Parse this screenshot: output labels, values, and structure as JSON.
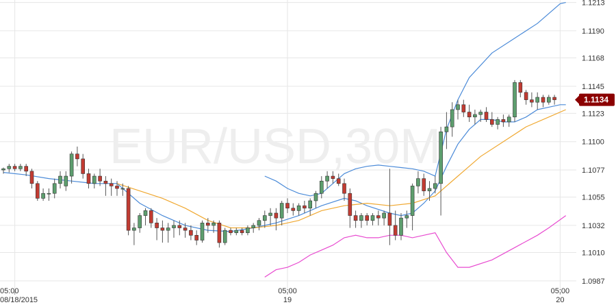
{
  "watermark": "EUR/USD,30M",
  "current_price_label": "1.1134",
  "colors": {
    "bull": "#5d9e6e",
    "bear": "#c23b32",
    "wick": "#555555",
    "ma_short": "#4a8ad8",
    "ma_long": "#f0a830",
    "band_lower": "#e84ad0",
    "tag_bg": "#8b0000",
    "grid": "#e6e6e6"
  },
  "chart_data": {
    "type": "candlestick",
    "symbol": "EUR/USD",
    "timeframe": "30M",
    "ylim": [
      1.0978,
      1.1215
    ],
    "y_ticks": [
      "1.1213",
      "1.1190",
      "1.1168",
      "1.1145",
      "1.1123",
      "1.1100",
      "1.1077",
      "1.1055",
      "1.1032",
      "1.1010",
      "1.0987"
    ],
    "x_ticks": [
      {
        "index": 2,
        "time": "05:00",
        "date": "08/18/2015"
      },
      {
        "index": 50,
        "time": "05:00",
        "date": "19"
      },
      {
        "index": 98,
        "time": "05:00",
        "date": "20"
      }
    ],
    "grid": true,
    "current_price": 1.1134,
    "candles": [
      [
        1.1077,
        1.1079,
        1.1074,
        1.1078
      ],
      [
        1.1078,
        1.1082,
        1.1075,
        1.108
      ],
      [
        1.108,
        1.1082,
        1.1076,
        1.1078
      ],
      [
        1.1078,
        1.1082,
        1.1076,
        1.108
      ],
      [
        1.108,
        1.1082,
        1.1072,
        1.1076
      ],
      [
        1.1076,
        1.1078,
        1.1062,
        1.1066
      ],
      [
        1.1066,
        1.1068,
        1.1052,
        1.1054
      ],
      [
        1.1054,
        1.1062,
        1.1052,
        1.1058
      ],
      [
        1.1058,
        1.1062,
        1.1052,
        1.1058
      ],
      [
        1.1058,
        1.107,
        1.1054,
        1.1066
      ],
      [
        1.1066,
        1.1076,
        1.1062,
        1.1072
      ],
      [
        1.1064,
        1.1076,
        1.106,
        1.1072
      ],
      [
        1.1072,
        1.1092,
        1.1066,
        1.109
      ],
      [
        1.109,
        1.1096,
        1.108,
        1.1086
      ],
      [
        1.1086,
        1.109,
        1.107,
        1.1074
      ],
      [
        1.1074,
        1.1078,
        1.1062,
        1.1066
      ],
      [
        1.1066,
        1.1074,
        1.1062,
        1.1072
      ],
      [
        1.1072,
        1.1078,
        1.1064,
        1.1068
      ],
      [
        1.1068,
        1.1072,
        1.1056,
        1.1066
      ],
      [
        1.1066,
        1.107,
        1.1056,
        1.1064
      ],
      [
        1.1064,
        1.1068,
        1.1056,
        1.1062
      ],
      [
        1.1062,
        1.1066,
        1.1056,
        1.1062
      ],
      [
        1.1062,
        1.1064,
        1.1024,
        1.1028
      ],
      [
        1.1028,
        1.1034,
        1.1016,
        1.103
      ],
      [
        1.103,
        1.1042,
        1.1026,
        1.104
      ],
      [
        1.104,
        1.1046,
        1.1032,
        1.1044
      ],
      [
        1.1044,
        1.1046,
        1.103,
        1.1034
      ],
      [
        1.1034,
        1.1038,
        1.102,
        1.103
      ],
      [
        1.103,
        1.1036,
        1.1018,
        1.1028
      ],
      [
        1.1028,
        1.1034,
        1.1018,
        1.103
      ],
      [
        1.103,
        1.1036,
        1.1022,
        1.1032
      ],
      [
        1.1032,
        1.1036,
        1.1024,
        1.103
      ],
      [
        1.103,
        1.1034,
        1.1022,
        1.1028
      ],
      [
        1.1028,
        1.1032,
        1.102,
        1.1024
      ],
      [
        1.1024,
        1.1028,
        1.1016,
        1.102
      ],
      [
        1.102,
        1.1036,
        1.1018,
        1.1034
      ],
      [
        1.1034,
        1.1038,
        1.1026,
        1.1032
      ],
      [
        1.1032,
        1.1036,
        1.1026,
        1.1034
      ],
      [
        1.1034,
        1.1036,
        1.1014,
        1.1018
      ],
      [
        1.1018,
        1.103,
        1.1016,
        1.1028
      ],
      [
        1.1028,
        1.103,
        1.1024,
        1.1026
      ],
      [
        1.1026,
        1.103,
        1.1024,
        1.1028
      ],
      [
        1.1028,
        1.103,
        1.1024,
        1.1026
      ],
      [
        1.1026,
        1.1032,
        1.1024,
        1.103
      ],
      [
        1.103,
        1.1034,
        1.1026,
        1.1032
      ],
      [
        1.1032,
        1.1038,
        1.1028,
        1.1036
      ],
      [
        1.1036,
        1.1044,
        1.103,
        1.104
      ],
      [
        1.104,
        1.1046,
        1.1032,
        1.1042
      ],
      [
        1.1042,
        1.1046,
        1.1028,
        1.1038
      ],
      [
        1.1038,
        1.1052,
        1.1032,
        1.105
      ],
      [
        1.105,
        1.1054,
        1.1042,
        1.1046
      ],
      [
        1.1046,
        1.105,
        1.104,
        1.1044
      ],
      [
        1.1044,
        1.105,
        1.104,
        1.1048
      ],
      [
        1.1048,
        1.1052,
        1.1042,
        1.1046
      ],
      [
        1.1046,
        1.1054,
        1.104,
        1.1052
      ],
      [
        1.1052,
        1.106,
        1.1046,
        1.1058
      ],
      [
        1.1058,
        1.1072,
        1.1054,
        1.1068
      ],
      [
        1.1068,
        1.1076,
        1.1062,
        1.1072
      ],
      [
        1.1072,
        1.1076,
        1.1066,
        1.107
      ],
      [
        1.107,
        1.1074,
        1.1064,
        1.1066
      ],
      [
        1.1066,
        1.107,
        1.1052,
        1.1058
      ],
      [
        1.1058,
        1.1062,
        1.103,
        1.104
      ],
      [
        1.104,
        1.1044,
        1.103,
        1.1036
      ],
      [
        1.1036,
        1.1042,
        1.103,
        1.104
      ],
      [
        1.104,
        1.1042,
        1.1032,
        1.1036
      ],
      [
        1.1036,
        1.1042,
        1.1032,
        1.104
      ],
      [
        1.104,
        1.1044,
        1.1032,
        1.1038
      ],
      [
        1.1038,
        1.1044,
        1.1032,
        1.1042
      ],
      [
        1.1042,
        1.1078,
        1.1016,
        1.1032
      ],
      [
        1.1032,
        1.1044,
        1.102,
        1.1024
      ],
      [
        1.1024,
        1.1042,
        1.102,
        1.1038
      ],
      [
        1.1038,
        1.1044,
        1.103,
        1.104
      ],
      [
        1.104,
        1.1066,
        1.1028,
        1.1064
      ],
      [
        1.1064,
        1.1076,
        1.1058,
        1.107
      ],
      [
        1.107,
        1.1074,
        1.1056,
        1.106
      ],
      [
        1.106,
        1.1068,
        1.1052,
        1.1062
      ],
      [
        1.1062,
        1.1072,
        1.1058,
        1.1066
      ],
      [
        1.1066,
        1.1112,
        1.104,
        1.1108
      ],
      [
        1.1108,
        1.1124,
        1.1094,
        1.1112
      ],
      [
        1.1112,
        1.1132,
        1.1104,
        1.1126
      ],
      [
        1.1126,
        1.1134,
        1.1118,
        1.113
      ],
      [
        1.113,
        1.1134,
        1.112,
        1.1124
      ],
      [
        1.1124,
        1.113,
        1.1116,
        1.112
      ],
      [
        1.112,
        1.1126,
        1.1114,
        1.1122
      ],
      [
        1.1122,
        1.1126,
        1.1116,
        1.1124
      ],
      [
        1.1124,
        1.1128,
        1.1116,
        1.1118
      ],
      [
        1.1118,
        1.1124,
        1.1112,
        1.1114
      ],
      [
        1.1114,
        1.112,
        1.111,
        1.1118
      ],
      [
        1.1118,
        1.1122,
        1.1112,
        1.1116
      ],
      [
        1.1116,
        1.1122,
        1.1112,
        1.112
      ],
      [
        1.112,
        1.115,
        1.1116,
        1.1148
      ],
      [
        1.1148,
        1.115,
        1.1136,
        1.114
      ],
      [
        1.114,
        1.1142,
        1.113,
        1.1134
      ],
      [
        1.1134,
        1.114,
        1.1128,
        1.1132
      ],
      [
        1.1132,
        1.114,
        1.1126,
        1.1136
      ],
      [
        1.1136,
        1.1138,
        1.1128,
        1.1132
      ],
      [
        1.1132,
        1.1138,
        1.113,
        1.1136
      ],
      [
        1.1136,
        1.1138,
        1.113,
        1.1134
      ]
    ],
    "series": [
      {
        "type": "line",
        "color": "#4a8ad8",
        "points": [
          [
            0,
            1.1075
          ],
          [
            4,
            1.1073
          ],
          [
            8,
            1.107
          ],
          [
            12,
            1.1068
          ],
          [
            16,
            1.1066
          ],
          [
            20,
            1.1066
          ],
          [
            22,
            1.1058
          ],
          [
            24,
            1.105
          ],
          [
            28,
            1.104
          ],
          [
            32,
            1.1032
          ],
          [
            36,
            1.1028
          ],
          [
            40,
            1.1027
          ],
          [
            44,
            1.103
          ],
          [
            48,
            1.1034
          ],
          [
            52,
            1.104
          ],
          [
            56,
            1.1048
          ],
          [
            60,
            1.1054
          ],
          [
            62,
            1.1052
          ],
          [
            64,
            1.1048
          ],
          [
            68,
            1.1042
          ],
          [
            70,
            1.104
          ],
          [
            72,
            1.1042
          ],
          [
            74,
            1.105
          ],
          [
            76,
            1.106
          ],
          [
            78,
            1.108
          ],
          [
            80,
            1.1098
          ],
          [
            82,
            1.111
          ],
          [
            84,
            1.1118
          ],
          [
            86,
            1.1118
          ],
          [
            88,
            1.1116
          ],
          [
            90,
            1.1116
          ],
          [
            92,
            1.112
          ],
          [
            94,
            1.1126
          ],
          [
            96,
            1.1128
          ],
          [
            98,
            1.113
          ],
          [
            99,
            1.113
          ]
        ]
      },
      {
        "type": "line",
        "color": "#f0a830",
        "points": [
          [
            20,
            1.1066
          ],
          [
            24,
            1.106
          ],
          [
            28,
            1.1054
          ],
          [
            32,
            1.1046
          ],
          [
            36,
            1.1036
          ],
          [
            40,
            1.103
          ],
          [
            44,
            1.103
          ],
          [
            48,
            1.1032
          ],
          [
            52,
            1.1036
          ],
          [
            56,
            1.1044
          ],
          [
            60,
            1.1048
          ],
          [
            64,
            1.105
          ],
          [
            68,
            1.1048
          ],
          [
            72,
            1.105
          ],
          [
            76,
            1.1056
          ],
          [
            80,
            1.1072
          ],
          [
            84,
            1.1088
          ],
          [
            88,
            1.11
          ],
          [
            92,
            1.1112
          ],
          [
            96,
            1.112
          ],
          [
            99,
            1.1126
          ]
        ]
      },
      {
        "type": "line",
        "color": "#4a8ad8",
        "points": [
          [
            46,
            1.1072
          ],
          [
            48,
            1.1068
          ],
          [
            50,
            1.1062
          ],
          [
            52,
            1.1058
          ],
          [
            54,
            1.1056
          ],
          [
            56,
            1.1058
          ],
          [
            58,
            1.1066
          ],
          [
            60,
            1.1074
          ],
          [
            62,
            1.1078
          ],
          [
            64,
            1.108
          ],
          [
            66,
            1.1081
          ],
          [
            68,
            1.108
          ],
          [
            70,
            1.1079
          ],
          [
            72,
            1.1078
          ],
          [
            74,
            1.1076
          ],
          [
            76,
            1.1072
          ],
          [
            78,
            1.111
          ],
          [
            80,
            1.1134
          ],
          [
            82,
            1.1152
          ],
          [
            86,
            1.1172
          ],
          [
            90,
            1.1184
          ],
          [
            94,
            1.1196
          ],
          [
            96,
            1.1204
          ],
          [
            98,
            1.1212
          ],
          [
            99,
            1.1213
          ]
        ]
      },
      {
        "type": "line",
        "color": "#e84ad0",
        "points": [
          [
            46,
            1.099
          ],
          [
            48,
            1.0996
          ],
          [
            50,
            1.0998
          ],
          [
            52,
            1.1002
          ],
          [
            54,
            1.1008
          ],
          [
            56,
            1.1012
          ],
          [
            58,
            1.1016
          ],
          [
            60,
            1.1022
          ],
          [
            62,
            1.1024
          ],
          [
            64,
            1.1022
          ],
          [
            66,
            1.1022
          ],
          [
            68,
            1.1024
          ],
          [
            70,
            1.1024
          ],
          [
            72,
            1.1022
          ],
          [
            74,
            1.1024
          ],
          [
            76,
            1.1026
          ],
          [
            78,
            1.101
          ],
          [
            80,
            1.0998
          ],
          [
            82,
            1.0998
          ],
          [
            86,
            1.1004
          ],
          [
            90,
            1.1014
          ],
          [
            94,
            1.1024
          ],
          [
            96,
            1.103
          ],
          [
            99,
            1.104
          ]
        ]
      }
    ]
  }
}
